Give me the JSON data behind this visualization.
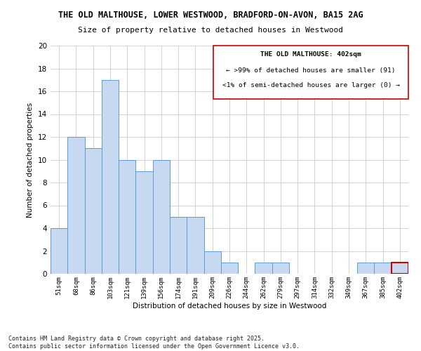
{
  "title_line1": "THE OLD MALTHOUSE, LOWER WESTWOOD, BRADFORD-ON-AVON, BA15 2AG",
  "title_line2": "Size of property relative to detached houses in Westwood",
  "xlabel": "Distribution of detached houses by size in Westwood",
  "ylabel": "Number of detached properties",
  "categories": [
    "51sqm",
    "68sqm",
    "86sqm",
    "103sqm",
    "121sqm",
    "139sqm",
    "156sqm",
    "174sqm",
    "191sqm",
    "209sqm",
    "226sqm",
    "244sqm",
    "262sqm",
    "279sqm",
    "297sqm",
    "314sqm",
    "332sqm",
    "349sqm",
    "367sqm",
    "385sqm",
    "402sqm"
  ],
  "values": [
    4,
    12,
    11,
    17,
    10,
    9,
    10,
    5,
    5,
    2,
    1,
    0,
    1,
    1,
    0,
    0,
    0,
    0,
    1,
    1,
    1
  ],
  "bar_color": "#c6d9f1",
  "bar_edge_color": "#5b9bd5",
  "highlight_bar_index": 20,
  "highlight_bar_edge_color": "#cc0000",
  "box_text_line1": "THE OLD MALTHOUSE: 402sqm",
  "box_text_line2": "← >99% of detached houses are smaller (91)",
  "box_text_line3": "<1% of semi-detached houses are larger (0) →",
  "ylim": [
    0,
    20
  ],
  "yticks": [
    0,
    2,
    4,
    6,
    8,
    10,
    12,
    14,
    16,
    18,
    20
  ],
  "footnote_line1": "Contains HM Land Registry data © Crown copyright and database right 2025.",
  "footnote_line2": "Contains public sector information licensed under the Open Government Licence v3.0.",
  "background_color": "#ffffff",
  "grid_color": "#cccccc"
}
